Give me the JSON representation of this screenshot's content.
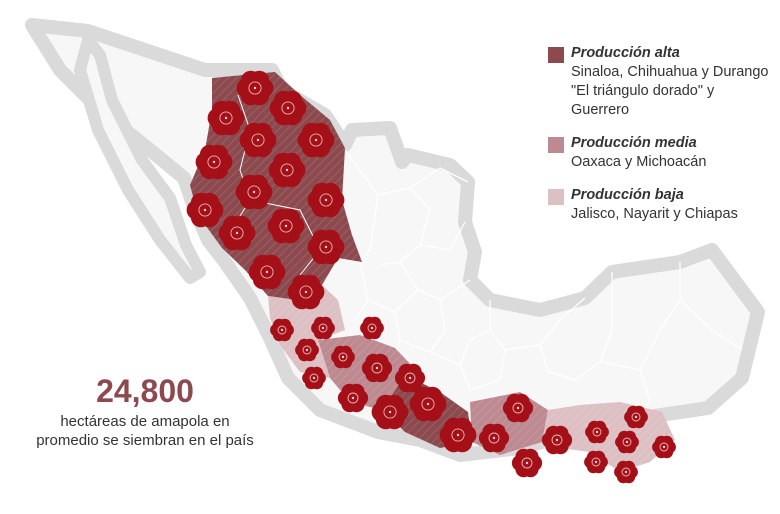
{
  "colors": {
    "high": "#8c4a4f",
    "medium": "#bd8a91",
    "low": "#dcc0c4",
    "flower": "#a50f17",
    "outline": "#dadada",
    "stat_number": "#8c4a4f"
  },
  "legend": {
    "items": [
      {
        "level": "high",
        "title": "Producción alta",
        "description": "Sinaloa, Chihuahua y Durango \"El triángulo dorado\" y Guerrero"
      },
      {
        "level": "medium",
        "title": "Producción media",
        "description": "Oaxaca y Michoacán"
      },
      {
        "level": "low",
        "title": "Producción baja",
        "description": "Jalisco, Nayarit y Chiapas"
      }
    ]
  },
  "stat": {
    "value": "24,800",
    "caption": "hectáreas de amapola en promedio se siembran en el país"
  },
  "map": {
    "region_icon": "poppy-flower-icon"
  }
}
